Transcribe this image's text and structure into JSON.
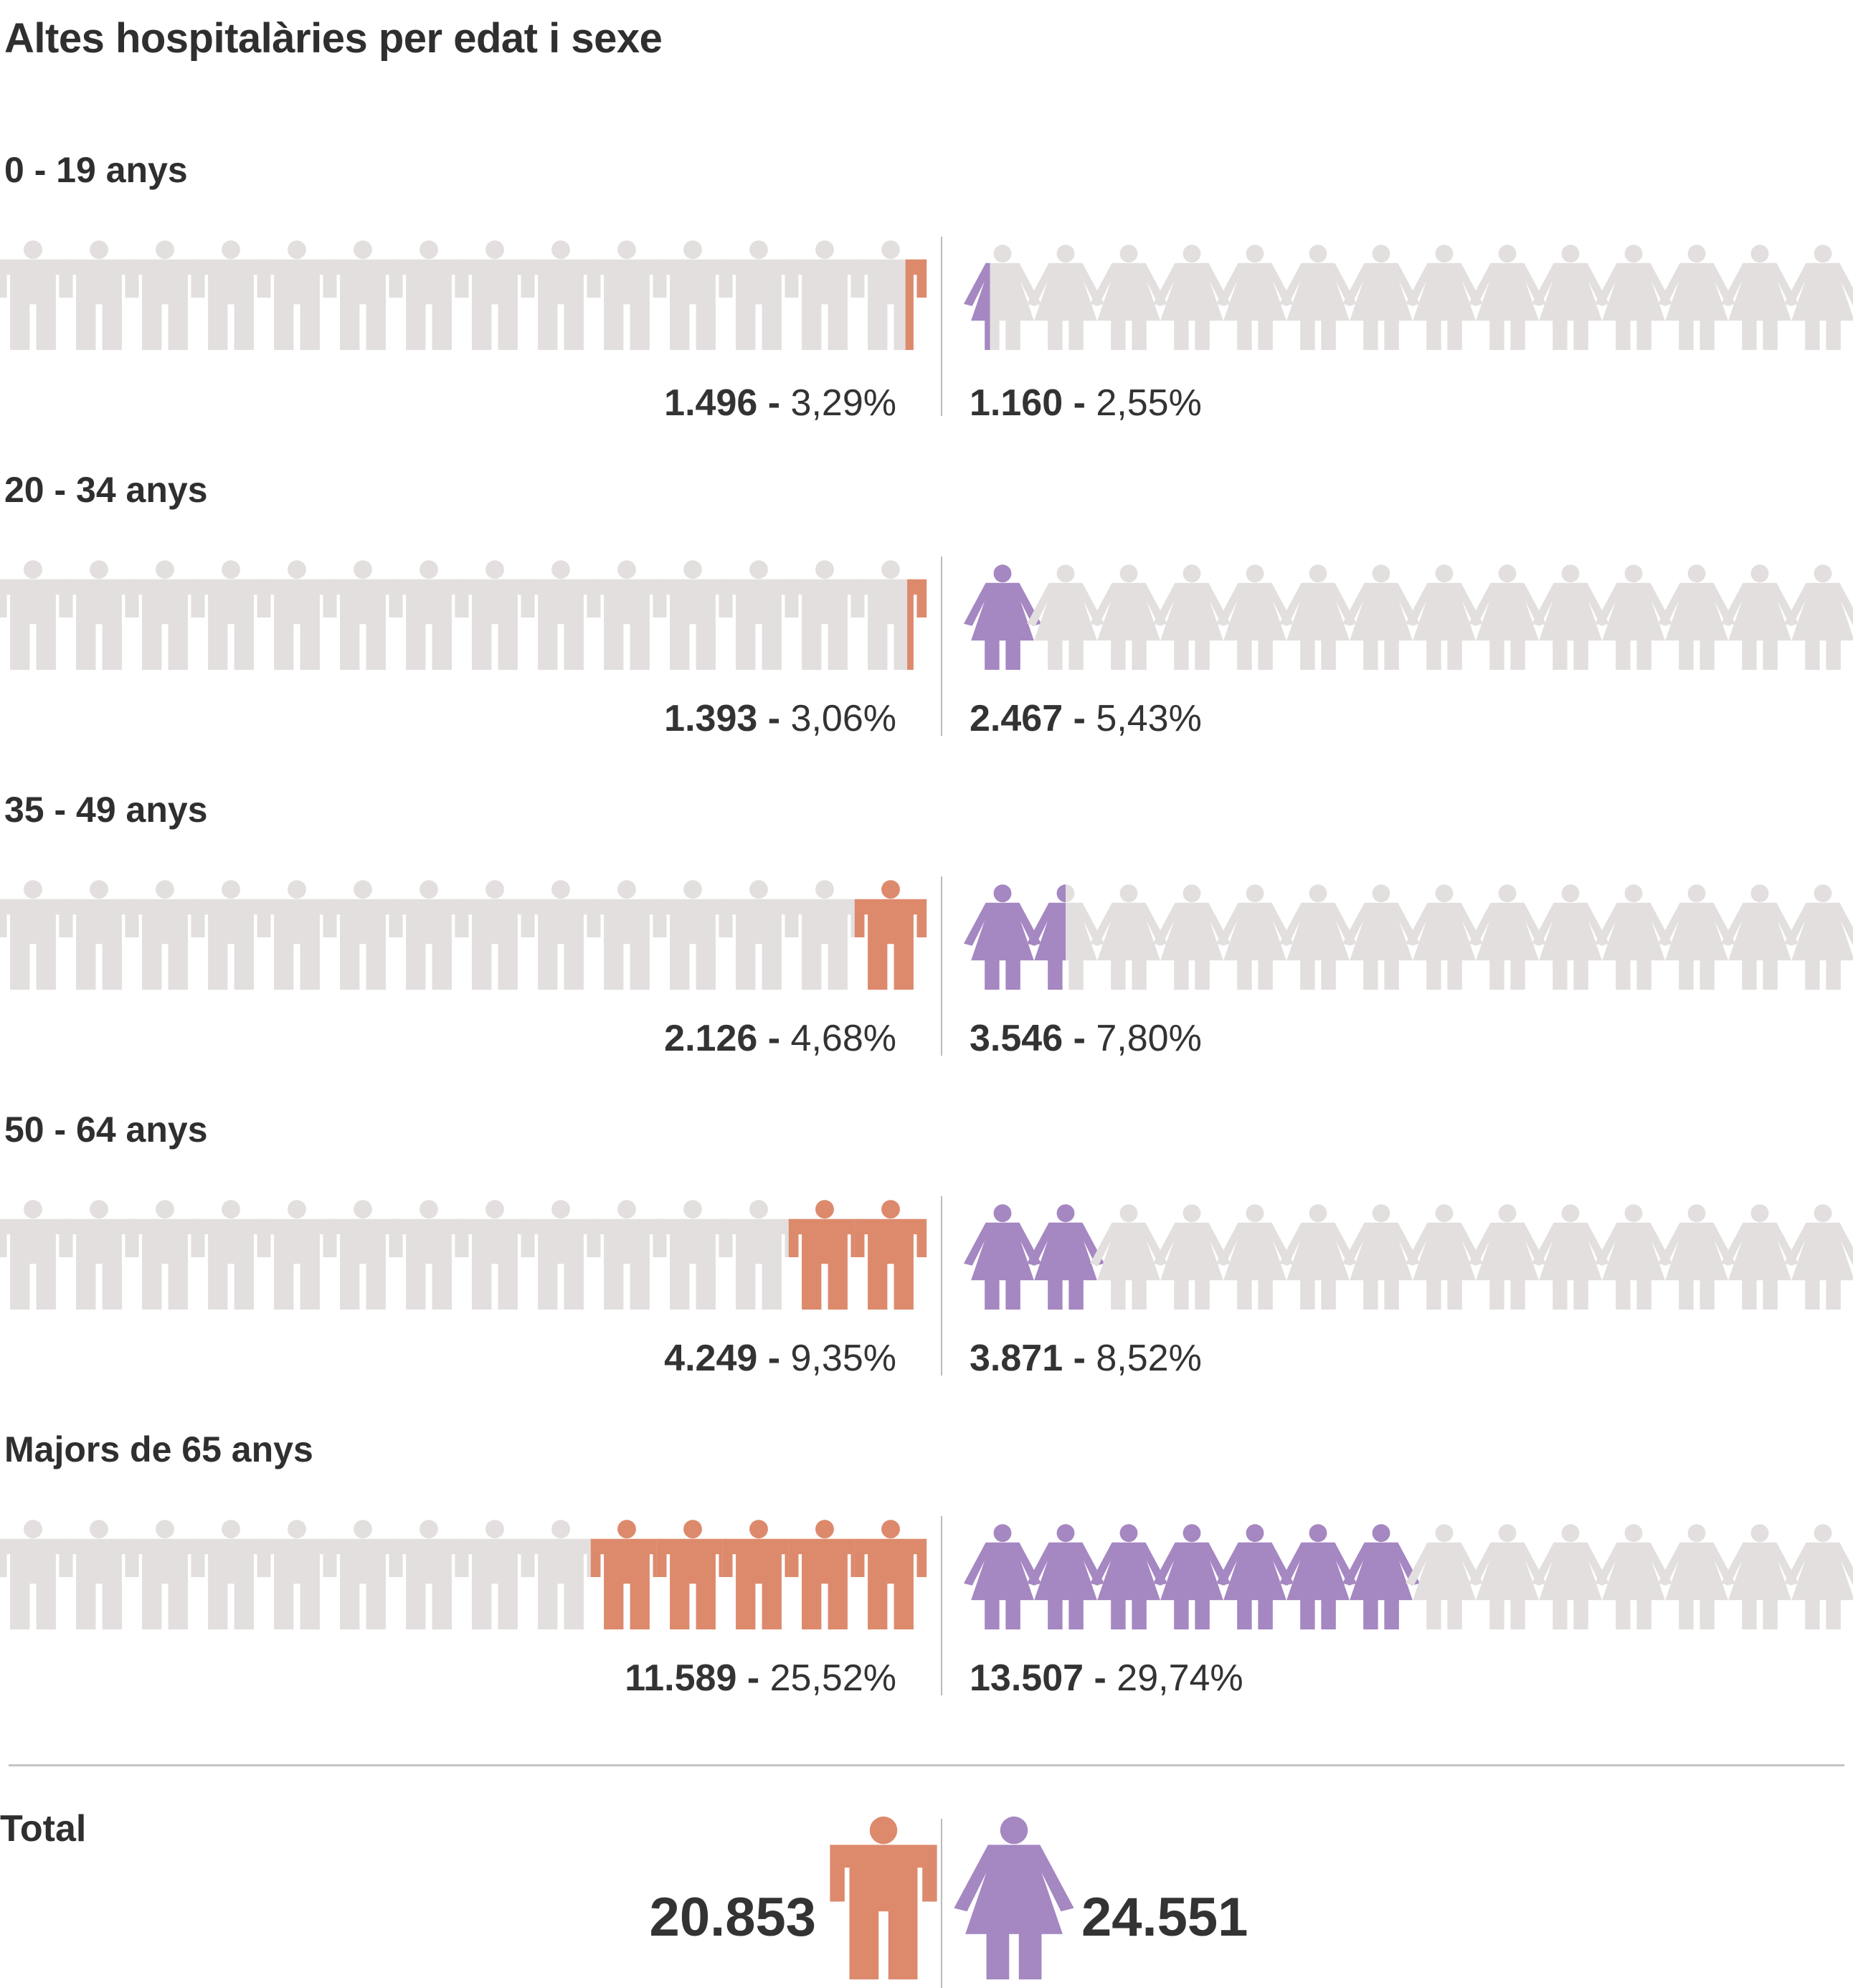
{
  "title": "Altes hospitalàries per edat i sexe",
  "colors": {
    "male": "#dd8a6c",
    "female": "#a587c2",
    "empty": "#e2dfde"
  },
  "chart_data": {
    "type": "pictograph",
    "groups": [
      {
        "label": "0 - 19 anys",
        "male": {
          "value": "1.496",
          "separator": "-",
          "pct": "3,29%"
        },
        "female": {
          "value": "1.160",
          "separator": "-",
          "pct": "2,55%"
        }
      },
      {
        "label": "20 - 34 anys",
        "male": {
          "value": "1.393",
          "separator": "-",
          "pct": "3,06%"
        },
        "female": {
          "value": "2.467",
          "separator": "-",
          "pct": "5,43%"
        }
      },
      {
        "label": "35 - 49 anys",
        "male": {
          "value": "2.126",
          "separator": "-",
          "pct": "4,68%"
        },
        "female": {
          "value": "3.546",
          "separator": "-",
          "pct": "7,80%"
        }
      },
      {
        "label": "50 - 64 anys",
        "male": {
          "value": "4.249",
          "separator": "-",
          "pct": "9,35%"
        },
        "female": {
          "value": "3.871",
          "separator": "-",
          "pct": "8,52%"
        }
      },
      {
        "label": "Majors de 65 anys",
        "male": {
          "value": "11.589",
          "separator": "-",
          "pct": "25,52%"
        },
        "female": {
          "value": "13.507",
          "separator": "-",
          "pct": "29,74%"
        }
      }
    ],
    "male_fill": [
      0.33,
      0.31,
      1,
      2,
      5
    ],
    "female_fill": [
      0.35,
      1,
      1.5,
      2,
      7
    ],
    "total": {
      "label": "Total",
      "male": "20.853",
      "female": "24.551"
    }
  }
}
